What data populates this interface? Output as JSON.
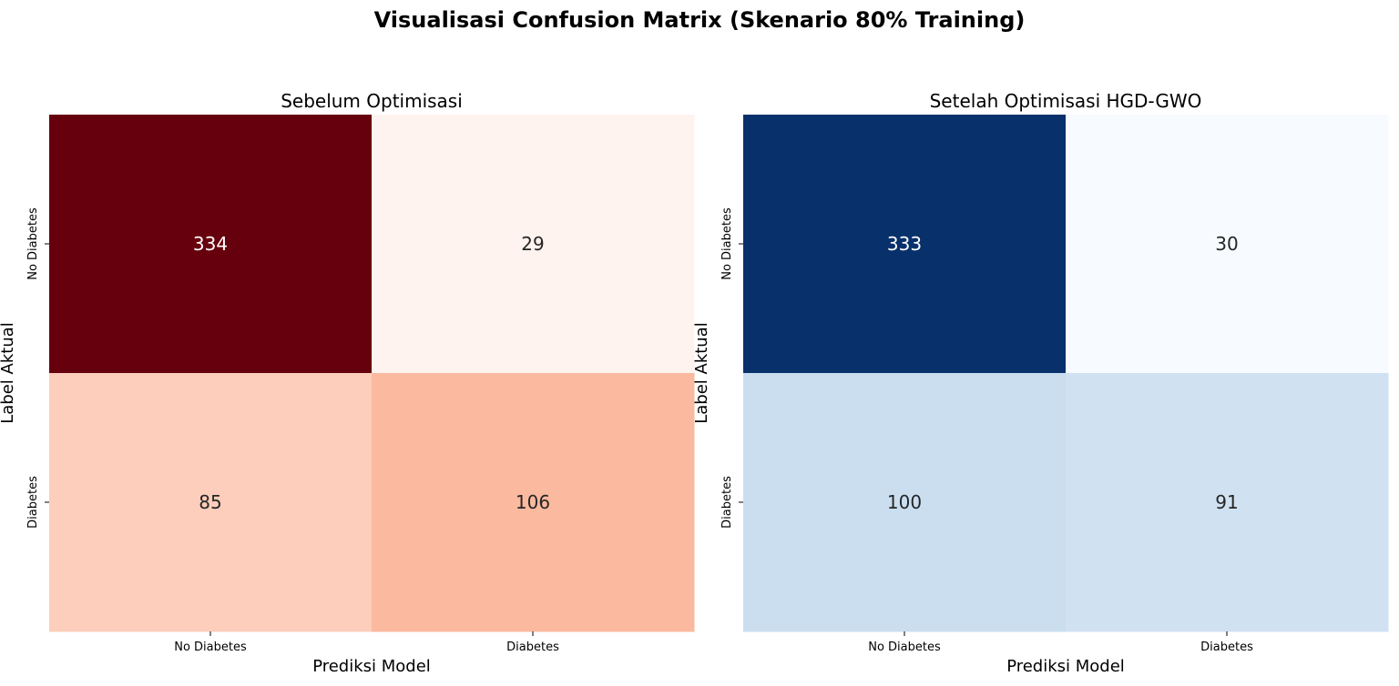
{
  "figure": {
    "suptitle": "Visualisasi Confusion Matrix (Skenario 80% Training)"
  },
  "chart_data": [
    {
      "type": "heatmap",
      "title": "Sebelum Optimisasi",
      "xlabel": "Prediksi Model",
      "ylabel": "Label Aktual",
      "x_categories": [
        "No Diabetes",
        "Diabetes"
      ],
      "y_categories": [
        "No Diabetes",
        "Diabetes"
      ],
      "values": [
        [
          334,
          29
        ],
        [
          85,
          106
        ]
      ],
      "colormap": "Reds",
      "colorbar": false,
      "cell_colors": [
        [
          "#67000d",
          "#fff3ef"
        ],
        [
          "#fccebb",
          "#fbb99f"
        ]
      ],
      "text_colors": [
        [
          "#ffffff",
          "#262626"
        ],
        [
          "#262626",
          "#262626"
        ]
      ]
    },
    {
      "type": "heatmap",
      "title": "Setelah Optimisasi HGD-GWO",
      "xlabel": "Prediksi Model",
      "ylabel": "Label Aktual",
      "x_categories": [
        "No Diabetes",
        "Diabetes"
      ],
      "y_categories": [
        "No Diabetes",
        "Diabetes"
      ],
      "values": [
        [
          333,
          30
        ],
        [
          100,
          91
        ]
      ],
      "colormap": "Blues",
      "colorbar": false,
      "cell_colors": [
        [
          "#08306b",
          "#f7fbff"
        ],
        [
          "#cadef0",
          "#d0e1f2"
        ]
      ],
      "text_colors": [
        [
          "#ffffff",
          "#262626"
        ],
        [
          "#262626",
          "#262626"
        ]
      ]
    }
  ]
}
